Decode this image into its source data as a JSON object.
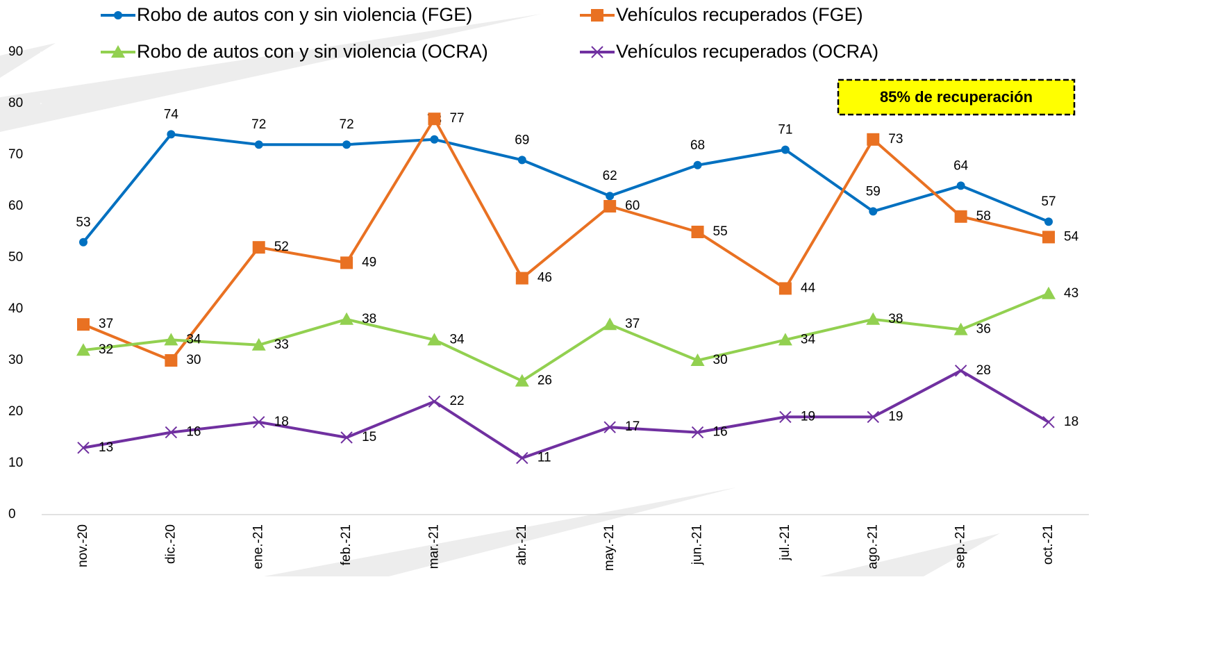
{
  "chart_data": {
    "type": "line",
    "categories": [
      "nov.-20",
      "dic.-20",
      "ene.-21",
      "feb.-21",
      "mar.-21",
      "abr.-21",
      "may.-21",
      "jun.-21",
      "jul.-21",
      "ago.-21",
      "sep.-21",
      "oct.-21"
    ],
    "series": [
      {
        "name": "Robo de autos con y sin violencia (FGE)",
        "color": "#0070c0",
        "marker": "circle",
        "values": [
          53,
          74,
          72,
          72,
          73,
          69,
          62,
          68,
          71,
          59,
          64,
          57
        ]
      },
      {
        "name": "Vehículos recuperados (FGE)",
        "color": "#e97122",
        "marker": "square",
        "values": [
          37,
          30,
          52,
          49,
          77,
          46,
          60,
          55,
          44,
          73,
          58,
          54
        ]
      },
      {
        "name": "Robo de autos con y sin violencia (OCRA)",
        "color": "#92d050",
        "marker": "triangle",
        "values": [
          32,
          34,
          33,
          38,
          34,
          26,
          37,
          30,
          34,
          38,
          36,
          43
        ]
      },
      {
        "name": "Vehículos recuperados (OCRA)",
        "color": "#7030a0",
        "marker": "x",
        "values": [
          13,
          16,
          18,
          15,
          22,
          11,
          17,
          16,
          19,
          19,
          28,
          18
        ]
      }
    ],
    "ylim": [
      0,
      90
    ],
    "yticks": [
      0,
      10,
      20,
      30,
      40,
      50,
      60,
      70,
      80,
      90
    ],
    "annotation": "85% de recuperación"
  }
}
